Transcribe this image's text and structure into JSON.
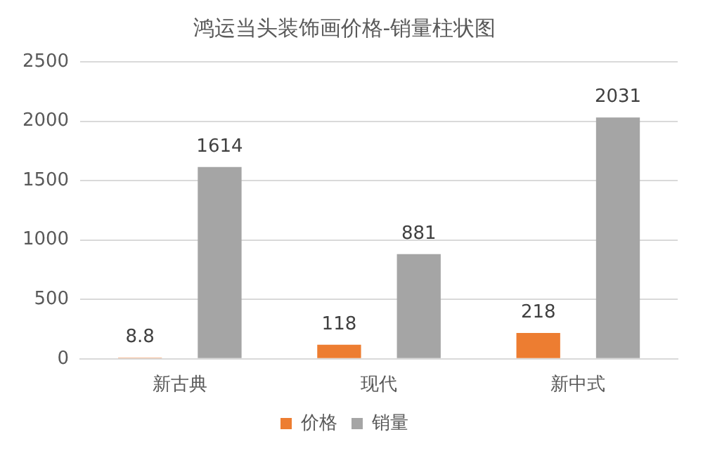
{
  "chart_data": {
    "type": "bar",
    "title": "鸿运当头装饰画价格-销量柱状图",
    "categories": [
      "新古典",
      "现代",
      "新中式"
    ],
    "series": [
      {
        "name": "价格",
        "color": "#ed7d31",
        "values": [
          8.8,
          118,
          218
        ]
      },
      {
        "name": "销量",
        "color": "#a5a5a5",
        "values": [
          1614,
          881,
          2031
        ]
      }
    ],
    "ylim": [
      0,
      2500
    ],
    "yticks": [
      0,
      500,
      1000,
      1500,
      2000,
      2500
    ],
    "grid": "y",
    "legend": "bottom",
    "data_labels": true
  }
}
